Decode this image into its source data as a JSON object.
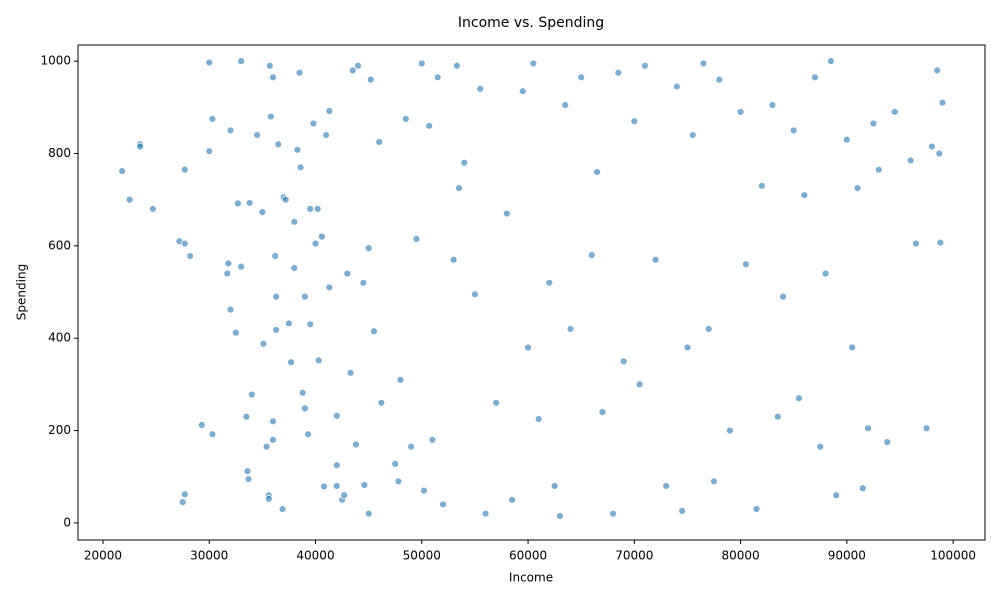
{
  "chart_data": {
    "type": "scatter",
    "title": "Income vs. Spending",
    "x_label": "Income",
    "y_label": "Spending",
    "color": "#1f77b4",
    "xlim": [
      17650,
      103000
    ],
    "ylim": [
      -37,
      1035
    ],
    "xticks": [
      20000,
      30000,
      40000,
      50000,
      60000,
      70000,
      80000,
      90000,
      100000
    ],
    "yticks": [
      0,
      200,
      400,
      600,
      800,
      1000
    ],
    "grid": false,
    "x": [
      21800,
      22500,
      24700,
      23500,
      23500,
      27200,
      27700,
      28200,
      27700,
      27500,
      27700,
      29300,
      30000,
      30000,
      30300,
      30300,
      31800,
      31700,
      32000,
      32000,
      32500,
      32700,
      33000,
      33000,
      33500,
      33600,
      33700,
      33800,
      34000,
      34500,
      35000,
      35100,
      35400,
      35600,
      35600,
      35700,
      35800,
      36000,
      36000,
      36000,
      36300,
      36300,
      36200,
      36500,
      36900,
      37000,
      37200,
      37500,
      37700,
      38000,
      38000,
      38300,
      38500,
      38600,
      38800,
      39000,
      39000,
      39300,
      39500,
      39500,
      39800,
      40000,
      40200,
      40300,
      40600,
      40800,
      41000,
      41300,
      41300,
      42000,
      42000,
      42000,
      42500,
      42700,
      43000,
      43300,
      43500,
      43800,
      44000,
      44500,
      44600,
      45000,
      45000,
      45200,
      45500,
      46000,
      46200,
      47500,
      47800,
      48000,
      48500,
      49000,
      49500,
      50000,
      50200,
      50700,
      51000,
      51500,
      52000,
      53000,
      53300,
      53500,
      54000,
      55000,
      55500,
      56000,
      57000,
      58000,
      58500,
      59500,
      60000,
      60500,
      61000,
      62000,
      62500,
      63000,
      63500,
      64000,
      65000,
      66000,
      66500,
      67000,
      68000,
      68500,
      69000,
      70000,
      70500,
      71000,
      72000,
      73000,
      74000,
      74500,
      75000,
      75500,
      76500,
      77000,
      77500,
      78000,
      79000,
      80000,
      80500,
      81500,
      82000,
      83000,
      83500,
      84000,
      85000,
      85500,
      86000,
      87000,
      87500,
      88000,
      88500,
      89000,
      90000,
      90500,
      91000,
      91500,
      92000,
      92500,
      93000,
      93800,
      94500,
      96000,
      96500,
      97500,
      98000,
      98500,
      98700,
      98800,
      99000
    ],
    "y": [
      762,
      700,
      680,
      820,
      815,
      610,
      605,
      578,
      765,
      45,
      62,
      212,
      997,
      805,
      875,
      192,
      562,
      540,
      850,
      462,
      412,
      692,
      555,
      1000,
      230,
      112,
      95,
      693,
      278,
      840,
      673,
      388,
      165,
      60,
      52,
      990,
      880,
      180,
      220,
      965,
      418,
      490,
      578,
      820,
      30,
      705,
      700,
      432,
      348,
      652,
      552,
      808,
      975,
      770,
      282,
      490,
      248,
      192,
      680,
      430,
      865,
      605,
      680,
      352,
      620,
      79,
      840,
      892,
      510,
      125,
      232,
      80,
      50,
      60,
      540,
      325,
      980,
      170,
      990,
      520,
      82,
      20,
      595,
      960,
      415,
      825,
      260,
      128,
      90,
      310,
      875,
      165,
      615,
      995,
      70,
      860,
      180,
      965,
      40,
      570,
      990,
      725,
      780,
      495,
      940,
      20,
      260,
      670,
      50,
      935,
      380,
      995,
      225,
      520,
      80,
      15,
      905,
      420,
      965,
      580,
      760,
      240,
      20,
      975,
      350,
      870,
      300,
      990,
      570,
      80,
      945,
      26,
      380,
      840,
      995,
      420,
      90,
      960,
      200,
      890,
      560,
      30,
      730,
      905,
      230,
      490,
      850,
      270,
      710,
      965,
      165,
      540,
      1000,
      60,
      830,
      380,
      725,
      75,
      205,
      865,
      765,
      175,
      890,
      785,
      605,
      205,
      815,
      980,
      800,
      607,
      910
    ]
  }
}
